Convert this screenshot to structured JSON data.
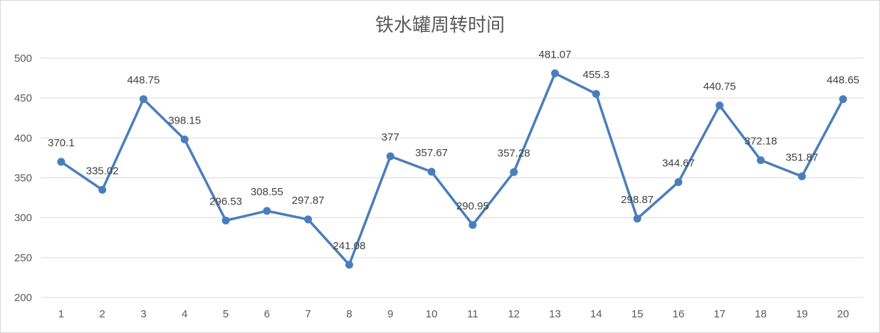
{
  "chart_data": {
    "type": "line",
    "title": "铁水罐周转时间",
    "xlabel": "",
    "ylabel": "",
    "categories": [
      "1",
      "2",
      "3",
      "4",
      "5",
      "6",
      "7",
      "8",
      "9",
      "10",
      "11",
      "12",
      "13",
      "14",
      "15",
      "16",
      "17",
      "18",
      "19",
      "20"
    ],
    "series": [
      {
        "values": [
          370.1,
          335.02,
          448.75,
          398.15,
          296.53,
          308.55,
          297.87,
          241.08,
          377,
          357.67,
          290.95,
          357.28,
          481.07,
          455.3,
          298.87,
          344.67,
          440.75,
          372.18,
          351.87,
          448.65
        ],
        "labels": [
          "370.1",
          "335.02",
          "448.75",
          "398.15",
          "296.53",
          "308.55",
          "297.87",
          "241.08",
          "377",
          "357.67",
          "290.95",
          "357.28",
          "481.07",
          "455.3",
          "298.87",
          "344.67",
          "440.75",
          "372.18",
          "351.87",
          "448.65"
        ],
        "color": "#4a7ebb"
      }
    ],
    "ylim": [
      200,
      500
    ],
    "yticks": [
      "200",
      "250",
      "300",
      "350",
      "400",
      "450",
      "500"
    ],
    "grid": true,
    "legend": "none",
    "data_labels": true
  }
}
